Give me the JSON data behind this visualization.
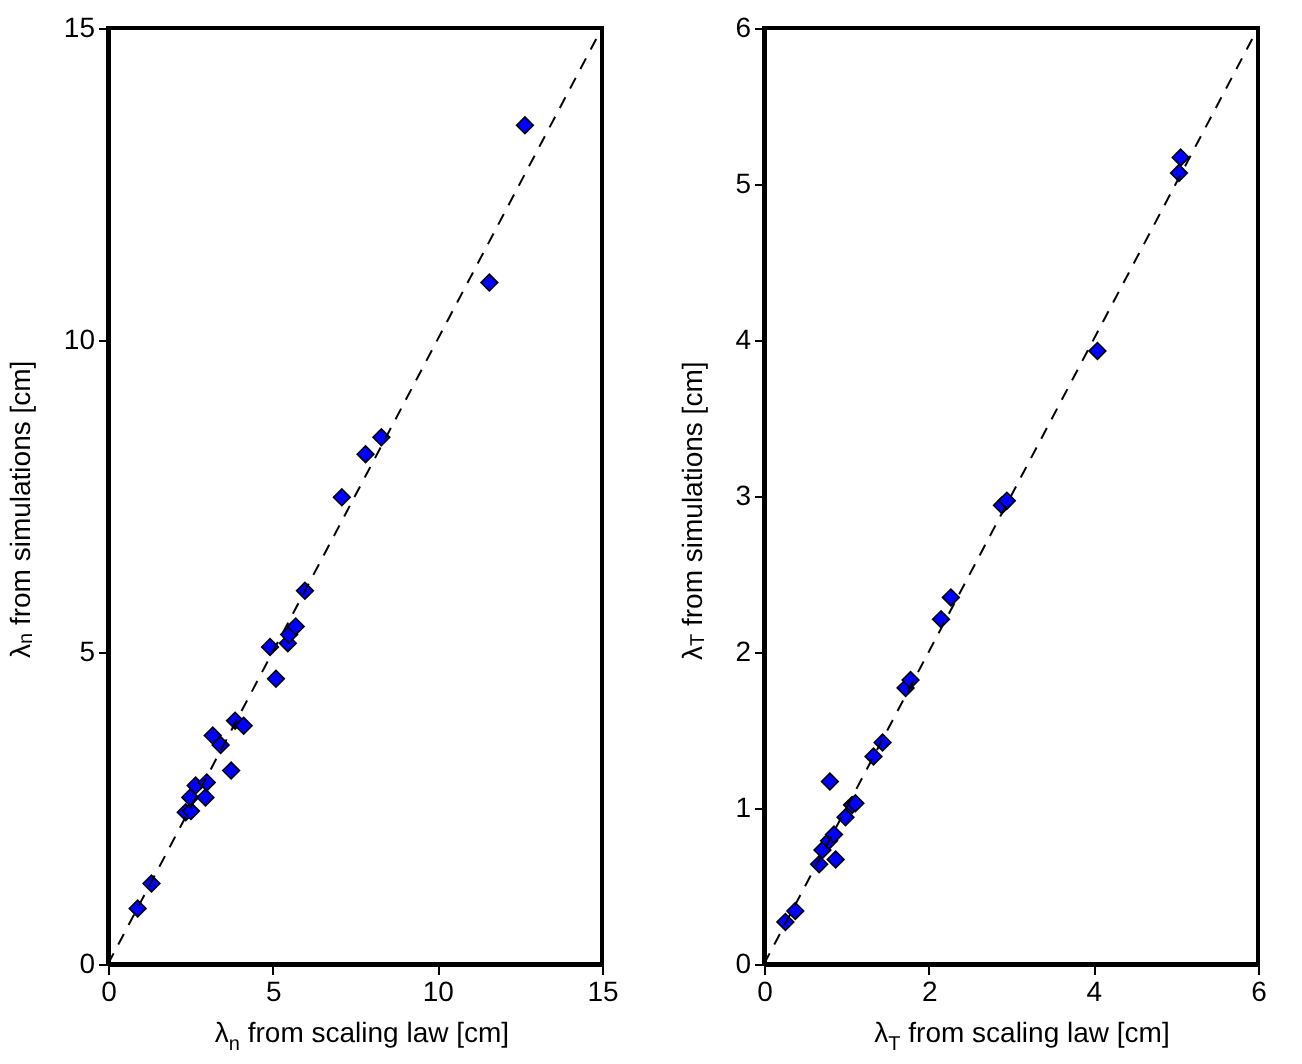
{
  "chart_data": [
    {
      "type": "scatter",
      "xlabel": "λ$_{n}$ from scaling law [cm]",
      "ylabel": "λ$_{n}$ from simulations [cm]",
      "xlim": [
        0,
        15
      ],
      "ylim": [
        0,
        15
      ],
      "xticks": [
        0,
        5,
        10,
        15
      ],
      "yticks": [
        0,
        5,
        10,
        15
      ],
      "grid": false,
      "series": [
        {
          "type": "scatter",
          "color": "#0000ff",
          "marker": "diamond",
          "x": [
            0.9,
            1.32,
            2.36,
            2.52,
            2.5,
            2.66,
            2.96,
            3.0,
            3.18,
            3.42,
            3.74,
            3.86,
            4.12,
            4.92,
            5.1,
            5.46,
            5.5,
            5.7,
            5.98,
            7.1,
            7.82,
            8.3,
            11.58,
            12.66
          ],
          "values": [
            0.89,
            1.29,
            2.43,
            2.45,
            2.67,
            2.86,
            2.67,
            2.91,
            3.66,
            3.51,
            3.1,
            3.9,
            3.82,
            5.08,
            4.57,
            5.14,
            5.28,
            5.41,
            5.98,
            7.48,
            8.17,
            8.44,
            10.92,
            13.44
          ]
        },
        {
          "type": "line",
          "color": "#000000",
          "line_style": "dashed",
          "x": [
            0,
            15
          ],
          "values": [
            0,
            15
          ]
        }
      ]
    },
    {
      "type": "scatter",
      "xlabel": "λ$_{T}$ from scaling law [cm]",
      "ylabel": "λ$_{T}$ from simulations [cm]",
      "xlim": [
        0,
        6
      ],
      "ylim": [
        0,
        6
      ],
      "xticks": [
        0,
        2,
        4,
        6
      ],
      "yticks": [
        0,
        1,
        2,
        3,
        4,
        5,
        6
      ],
      "grid": false,
      "series": [
        {
          "type": "scatter",
          "color": "#0000ff",
          "marker": "diamond",
          "x": [
            0.26,
            0.38,
            0.67,
            0.71,
            0.79,
            0.87,
            0.85,
            0.8,
            0.99,
            1.07,
            1.11,
            1.33,
            1.44,
            1.72,
            1.78,
            2.15,
            2.27,
            2.89,
            2.95,
            4.05,
            5.04,
            5.06
          ],
          "values": [
            0.27,
            0.34,
            0.64,
            0.73,
            0.79,
            0.67,
            0.83,
            1.17,
            0.94,
            1.02,
            1.03,
            1.33,
            1.42,
            1.77,
            1.82,
            2.21,
            2.35,
            2.94,
            2.97,
            3.93,
            5.07,
            5.17
          ]
        },
        {
          "type": "line",
          "color": "#000000",
          "line_style": "dashed",
          "x": [
            0,
            6
          ],
          "values": [
            0,
            6
          ]
        }
      ]
    }
  ]
}
